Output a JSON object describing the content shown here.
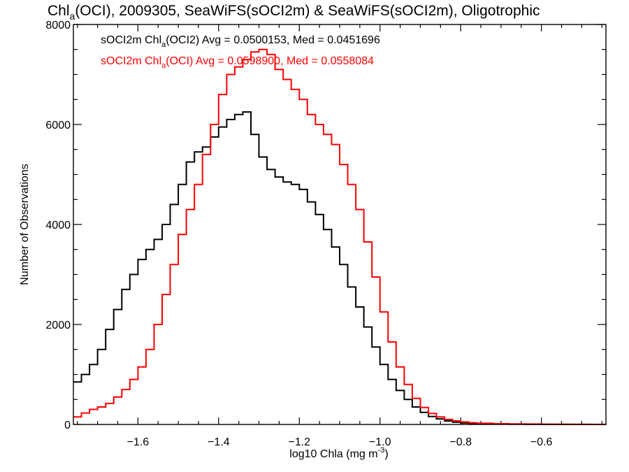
{
  "chart_data": {
    "type": "line",
    "style": "step-histogram",
    "title": {
      "prefix": "Chl",
      "prefix_sub": "a",
      "rest": "(OCI), 2009305, SeaWiFS(sOCI2m) & SeaWiFS(sOCI2m), Oligotrophic"
    },
    "xlabel": {
      "text": "log10 Chla (mg m",
      "sup": "-3",
      "close": ")"
    },
    "ylabel": "Number of Observations",
    "xlim": [
      -1.76,
      -0.44
    ],
    "ylim": [
      0,
      8000
    ],
    "xticks": [
      -1.6,
      -1.4,
      -1.2,
      -1.0,
      -0.8,
      -0.6
    ],
    "xtick_labels": [
      "−1.6",
      "−1.4",
      "−1.2",
      "−1.0",
      "−0.8",
      "−0.6"
    ],
    "yticks": [
      0,
      2000,
      4000,
      6000,
      8000
    ],
    "ytick_labels": [
      "0",
      "2000",
      "4000",
      "6000",
      "8000"
    ],
    "grid": false,
    "legend_position": "top-left",
    "series": [
      {
        "name": "sOCI2m Chl_a(OCI2) Avg = 0.0500153, Med = 0.0451696",
        "legend": {
          "p1": "sOCI2m Chl",
          "sub": "a",
          "p2": "(OCI2) Avg = 0.0500153, Med = 0.0451696"
        },
        "color": "#000000",
        "x": [
          -1.76,
          -1.74,
          -1.72,
          -1.7,
          -1.68,
          -1.66,
          -1.64,
          -1.62,
          -1.6,
          -1.58,
          -1.56,
          -1.54,
          -1.52,
          -1.5,
          -1.48,
          -1.46,
          -1.44,
          -1.42,
          -1.4,
          -1.38,
          -1.36,
          -1.34,
          -1.32,
          -1.3,
          -1.28,
          -1.26,
          -1.24,
          -1.22,
          -1.2,
          -1.18,
          -1.16,
          -1.14,
          -1.12,
          -1.1,
          -1.08,
          -1.06,
          -1.04,
          -1.02,
          -1.0,
          -0.98,
          -0.96,
          -0.94,
          -0.92,
          -0.9,
          -0.88,
          -0.86,
          -0.84,
          -0.82,
          -0.8,
          -0.78,
          -0.76,
          -0.72,
          -0.68,
          -0.64,
          -0.6,
          -0.56,
          -0.52,
          -0.48,
          -0.44
        ],
        "y": [
          850,
          1000,
          1200,
          1500,
          1900,
          2300,
          2700,
          3000,
          3300,
          3500,
          3700,
          4000,
          4400,
          4800,
          5250,
          5450,
          5550,
          5750,
          5950,
          6100,
          6200,
          6250,
          5800,
          5350,
          5100,
          4950,
          4850,
          4800,
          4700,
          4450,
          4200,
          3900,
          3550,
          3200,
          2750,
          2350,
          1950,
          1550,
          1200,
          900,
          680,
          500,
          350,
          240,
          160,
          110,
          70,
          45,
          30,
          20,
          14,
          8,
          5,
          3,
          2,
          1,
          1,
          0,
          0
        ]
      },
      {
        "name": "sOCI2m Chl_a(OCI) Avg = 0.0598900, Med = 0.0558084",
        "legend": {
          "p1": "sOCI2m Chl",
          "sub": "a",
          "p2": "(OCI) Avg = 0.0598900, Med = 0.0558084"
        },
        "color": "#ff0000",
        "x": [
          -1.76,
          -1.74,
          -1.72,
          -1.7,
          -1.68,
          -1.66,
          -1.64,
          -1.62,
          -1.6,
          -1.58,
          -1.56,
          -1.54,
          -1.52,
          -1.5,
          -1.48,
          -1.46,
          -1.44,
          -1.42,
          -1.4,
          -1.38,
          -1.36,
          -1.34,
          -1.32,
          -1.3,
          -1.28,
          -1.26,
          -1.24,
          -1.22,
          -1.2,
          -1.18,
          -1.16,
          -1.14,
          -1.12,
          -1.1,
          -1.08,
          -1.06,
          -1.04,
          -1.02,
          -1.0,
          -0.98,
          -0.96,
          -0.94,
          -0.92,
          -0.9,
          -0.88,
          -0.86,
          -0.84,
          -0.82,
          -0.8,
          -0.78,
          -0.76,
          -0.72,
          -0.68,
          -0.64,
          -0.6,
          -0.56,
          -0.52,
          -0.48,
          -0.44
        ],
        "y": [
          150,
          230,
          300,
          350,
          420,
          550,
          700,
          900,
          1150,
          1500,
          2000,
          2600,
          3200,
          3800,
          4300,
          4800,
          5400,
          6000,
          6600,
          7000,
          7150,
          7300,
          7450,
          7500,
          7400,
          7100,
          6900,
          6700,
          6500,
          6200,
          6000,
          5800,
          5600,
          5200,
          4800,
          4300,
          3650,
          2950,
          2250,
          1650,
          1150,
          800,
          520,
          340,
          220,
          150,
          100,
          70,
          50,
          35,
          25,
          15,
          10,
          8,
          5,
          3,
          2,
          1,
          0
        ]
      }
    ]
  }
}
